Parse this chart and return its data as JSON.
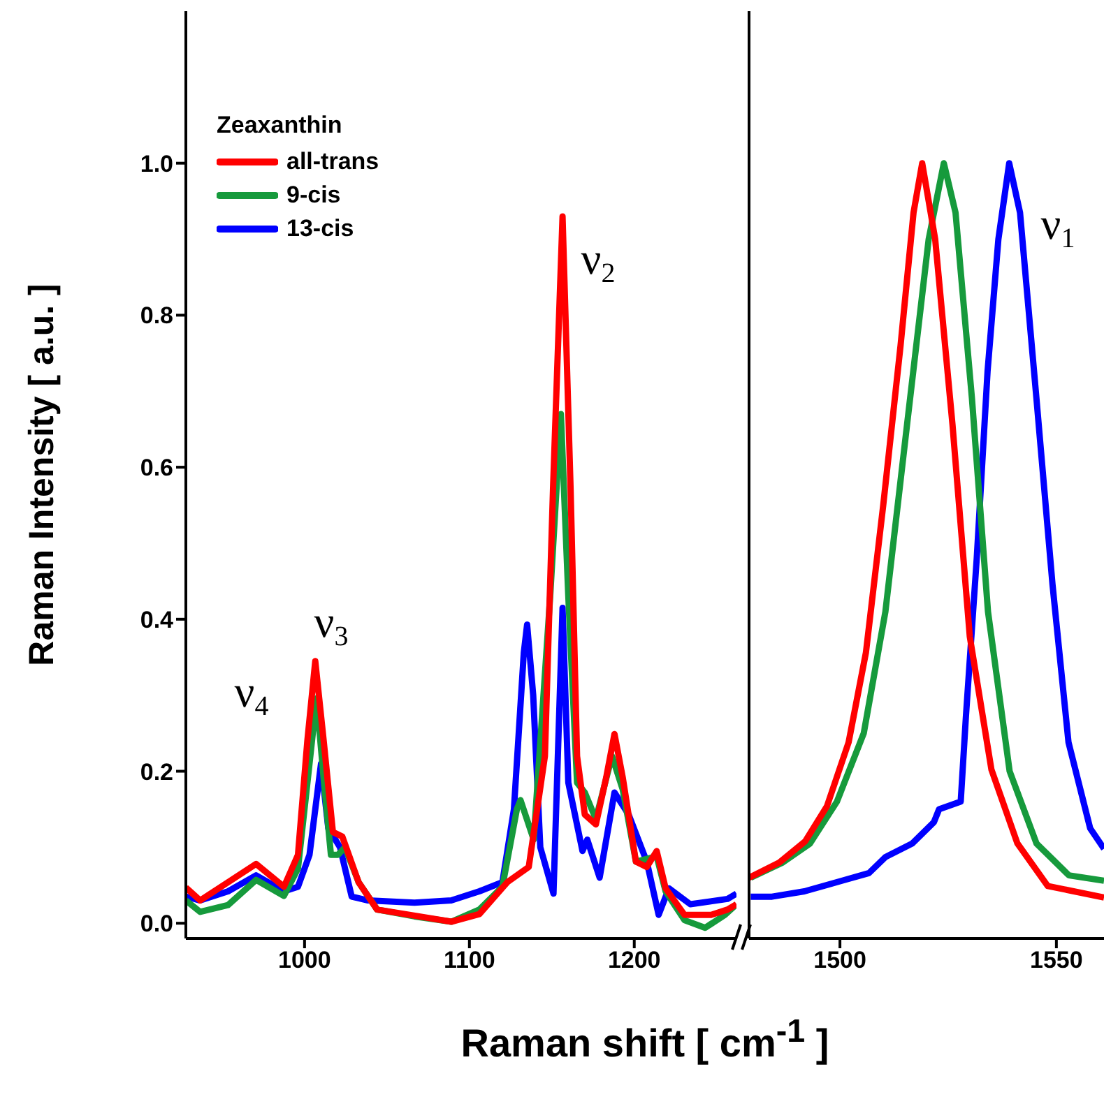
{
  "chart_data": [
    {
      "type": "line",
      "ylabel": "Raman Intensity [ a.u. ]",
      "xlabel": "Raman shift [ cm$^{-1}$ ]",
      "legend_title": "Zeaxanthin",
      "legend": "top left",
      "xlim": [
        928,
        1262
      ],
      "xticks": [
        1000,
        1100,
        1200
      ],
      "ylim": [
        -0.02,
        1.2
      ],
      "yticks": [
        {
          "value": 0,
          "label": "0.0"
        },
        {
          "value": 0.2,
          "label": "0.2"
        },
        {
          "value": 0.4,
          "label": "0.4"
        },
        {
          "value": 0.6,
          "label": "0.6"
        },
        {
          "value": 0.8,
          "label": "0.8"
        },
        {
          "value": 1,
          "label": "1.0"
        }
      ],
      "grid": false,
      "marker": "none",
      "line_style": "solid",
      "annotations": [
        "ν$_{4}$",
        "ν$_{3}$",
        "ν$_{2}$"
      ],
      "series": [
        {
          "name": "all-trans",
          "color": "#ff0000",
          "x": [
            928,
            936.7,
            953.6,
            970.6,
            987.5,
            996,
            1001.7,
            1006.5,
            1011.6,
            1017.2,
            1022.9,
            1032.8,
            1044,
            1061,
            1089,
            1106,
            1123,
            1136,
            1145.8,
            1150.7,
            1156.5,
            1161.4,
            1165.3,
            1170,
            1176.7,
            1183,
            1188,
            1193,
            1201,
            1207.6,
            1213.6,
            1219,
            1230.5,
            1246.6,
            1256.6,
            1262
          ],
          "values": [
            0.047,
            0.03,
            0.054,
            0.078,
            0.048,
            0.09,
            0.24,
            0.345,
            0.24,
            0.12,
            0.114,
            0.054,
            0.018,
            0.012,
            0.002,
            0.012,
            0.054,
            0.074,
            0.22,
            0.57,
            0.93,
            0.57,
            0.22,
            0.143,
            0.13,
            0.192,
            0.249,
            0.192,
            0.081,
            0.074,
            0.095,
            0.046,
            0.011,
            0.011,
            0.018,
            0.025
          ]
        },
        {
          "name": "9-cis",
          "color": "#169a3c",
          "x": [
            928,
            936.7,
            953.6,
            970.6,
            987.5,
            996,
            1003,
            1007.3,
            1011.6,
            1016,
            1020.3,
            1024.5,
            1032.8,
            1044,
            1066.7,
            1089,
            1106,
            1120,
            1128.8,
            1131,
            1139,
            1149,
            1155.5,
            1160,
            1165.3,
            1170,
            1176.7,
            1186.5,
            1193,
            1201,
            1213.6,
            1219,
            1230.5,
            1243,
            1255,
            1262
          ],
          "values": [
            0.03,
            0.015,
            0.024,
            0.057,
            0.036,
            0.072,
            0.21,
            0.296,
            0.19,
            0.09,
            0.09,
            0.1,
            0.054,
            0.018,
            0.009,
            0.002,
            0.018,
            0.048,
            0.15,
            0.162,
            0.11,
            0.43,
            0.67,
            0.43,
            0.185,
            0.172,
            0.137,
            0.22,
            0.176,
            0.081,
            0.088,
            0.042,
            0.004,
            -0.006,
            0.011,
            0.025
          ]
        },
        {
          "name": "13-cis",
          "color": "#0000ff",
          "x": [
            928,
            936.7,
            953.6,
            970.6,
            987.5,
            996,
            1003,
            1010,
            1014.4,
            1021.5,
            1028.6,
            1038.5,
            1066.7,
            1089,
            1106,
            1120,
            1127,
            1133,
            1135,
            1138.7,
            1143,
            1151,
            1156.5,
            1160,
            1168.6,
            1171.5,
            1179,
            1188,
            1196.6,
            1207.6,
            1214.8,
            1221,
            1234,
            1256.6,
            1262
          ],
          "values": [
            0.035,
            0.03,
            0.042,
            0.063,
            0.042,
            0.048,
            0.09,
            0.21,
            0.125,
            0.1,
            0.035,
            0.03,
            0.027,
            0.03,
            0.042,
            0.054,
            0.15,
            0.356,
            0.393,
            0.3,
            0.1,
            0.039,
            0.415,
            0.185,
            0.095,
            0.11,
            0.06,
            0.172,
            0.143,
            0.081,
            0.011,
            0.046,
            0.025,
            0.032,
            0.039
          ]
        }
      ]
    },
    {
      "type": "line",
      "tick_labels": "x",
      "xlim": [
        1479,
        1561
      ],
      "xticks": [
        1500,
        1550
      ],
      "ylim": [
        -0.02,
        1.2
      ],
      "grid": false,
      "marker": "none",
      "line_style": "solid",
      "annotations": [
        "ν$_{1}$"
      ],
      "series": [
        {
          "color": "#ff0000",
          "x": [
            1479,
            1486,
            1492,
            1497,
            1502,
            1506,
            1510,
            1514,
            1517,
            1519,
            1522,
            1526,
            1530,
            1535,
            1541,
            1548,
            1561
          ],
          "values": [
            0.06,
            0.08,
            0.108,
            0.154,
            0.238,
            0.356,
            0.55,
            0.76,
            0.935,
            1.0,
            0.9,
            0.656,
            0.377,
            0.202,
            0.105,
            0.049,
            0.034
          ]
        },
        {
          "color": "#169a3c",
          "x": [
            1479.4,
            1486.8,
            1493.1,
            1499.3,
            1505.5,
            1510.5,
            1515.5,
            1520.5,
            1524,
            1526.7,
            1530.5,
            1534.2,
            1539.2,
            1545.4,
            1552.9,
            1561
          ],
          "values": [
            0.06,
            0.08,
            0.105,
            0.16,
            0.25,
            0.41,
            0.656,
            0.9,
            1.0,
            0.935,
            0.69,
            0.41,
            0.2,
            0.105,
            0.063,
            0.056
          ]
        },
        {
          "color": "#0000ff",
          "x": [
            1479.4,
            1484.3,
            1491.8,
            1500.5,
            1506.7,
            1510.5,
            1516.7,
            1521.7,
            1522.9,
            1527.9,
            1529.1,
            1531.6,
            1534.1,
            1536.6,
            1539.1,
            1541.6,
            1545.4,
            1549.1,
            1552.8,
            1557.8,
            1561
          ],
          "values": [
            0.035,
            0.035,
            0.042,
            0.056,
            0.066,
            0.087,
            0.105,
            0.133,
            0.15,
            0.16,
            0.272,
            0.48,
            0.726,
            0.9,
            1.0,
            0.935,
            0.69,
            0.446,
            0.238,
            0.125,
            0.098
          ]
        }
      ]
    }
  ]
}
